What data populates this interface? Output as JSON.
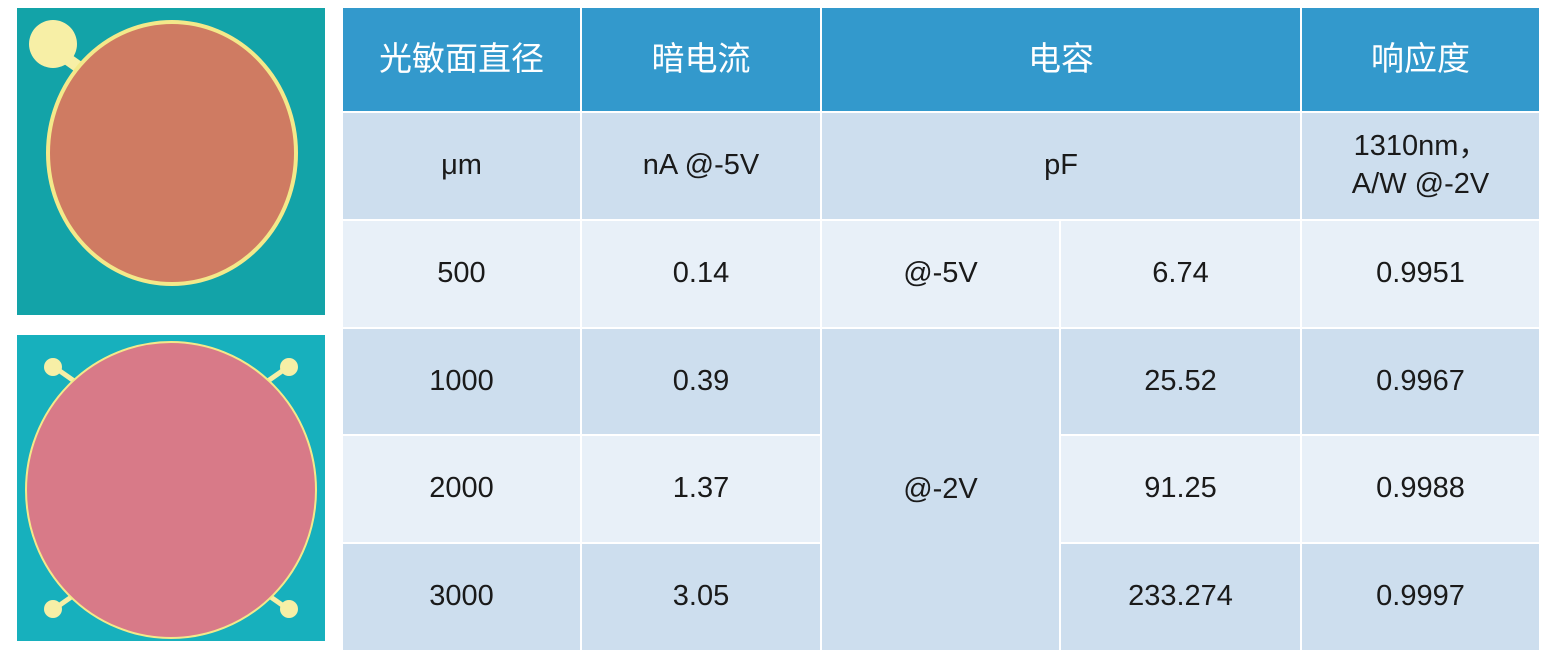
{
  "images": [
    {
      "name": "photodetector-single-pad",
      "chip_color": "#cf7b62",
      "background_color": "#13a3a8",
      "pad_color": "#f7efa6"
    },
    {
      "name": "photodetector-four-pad",
      "chip_color": "#d87a88",
      "background_color": "#17b0bd",
      "pad_color": "#f7efa6"
    }
  ],
  "table": {
    "headers": [
      "光敏面直径",
      "暗电流",
      "电容",
      "响应度"
    ],
    "units": [
      "μm",
      "nA @-5V",
      "pF",
      "1310nm，A/W @-2V"
    ],
    "rows": [
      {
        "diameter": "500",
        "dark_current": "0.14",
        "bias": "@-5V",
        "capacitance": "6.74",
        "responsivity": "0.9951"
      },
      {
        "diameter": "1000",
        "dark_current": "0.39",
        "bias": "@-2V",
        "capacitance": "25.52",
        "responsivity": "0.9967"
      },
      {
        "diameter": "2000",
        "dark_current": "1.37",
        "capacitance": "91.25",
        "responsivity": "0.9988"
      },
      {
        "diameter": "3000",
        "dark_current": "3.05",
        "capacitance": "233.274",
        "responsivity": "0.9997"
      }
    ]
  },
  "colors": {
    "header": "#3399cc",
    "row_dark": "#cddeee",
    "row_light": "#e8f0f8"
  }
}
